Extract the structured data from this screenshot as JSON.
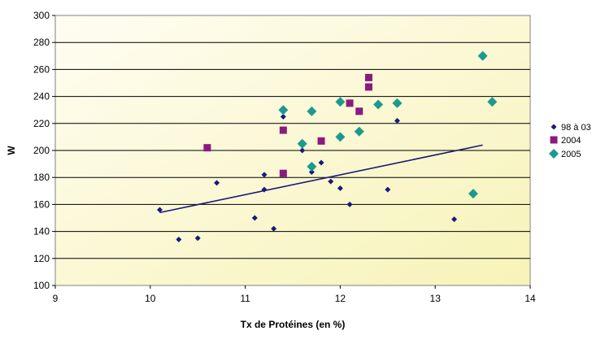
{
  "chart_data": {
    "type": "scatter",
    "xlabel": "Tx de Protéines (en %)",
    "ylabel": "W",
    "xlim": [
      9,
      14
    ],
    "ylim": [
      100,
      300
    ],
    "xticks": [
      9,
      10,
      11,
      12,
      13,
      14
    ],
    "yticks": [
      100,
      120,
      140,
      160,
      180,
      200,
      220,
      240,
      260,
      280,
      300
    ],
    "grid": "horizontal",
    "legend_position": "right",
    "background_gradient": [
      "#fffdf2",
      "#f7f3b8"
    ],
    "series": [
      {
        "name": "98 à 03",
        "color": "#1a1a7a",
        "marker": "diamond-small",
        "points": [
          [
            10.1,
            156
          ],
          [
            10.3,
            134
          ],
          [
            10.5,
            135
          ],
          [
            10.7,
            176
          ],
          [
            11.1,
            150
          ],
          [
            11.2,
            182
          ],
          [
            11.2,
            171
          ],
          [
            11.3,
            142
          ],
          [
            11.4,
            225
          ],
          [
            11.6,
            200
          ],
          [
            11.7,
            184
          ],
          [
            11.8,
            191
          ],
          [
            11.9,
            177
          ],
          [
            12.0,
            172
          ],
          [
            12.1,
            160
          ],
          [
            12.5,
            171
          ],
          [
            12.6,
            222
          ],
          [
            13.2,
            149
          ]
        ]
      },
      {
        "name": "2004",
        "color": "#8b1a7d",
        "marker": "square",
        "points": [
          [
            10.6,
            202
          ],
          [
            11.4,
            215
          ],
          [
            11.4,
            183
          ],
          [
            11.8,
            207
          ],
          [
            12.1,
            235
          ],
          [
            12.2,
            229
          ],
          [
            12.3,
            254
          ],
          [
            12.3,
            247
          ]
        ]
      },
      {
        "name": "2005",
        "color": "#1a9a90",
        "marker": "diamond",
        "points": [
          [
            11.4,
            230
          ],
          [
            11.6,
            205
          ],
          [
            11.7,
            229
          ],
          [
            11.7,
            188
          ],
          [
            12.0,
            236
          ],
          [
            12.0,
            210
          ],
          [
            12.2,
            214
          ],
          [
            12.4,
            234
          ],
          [
            12.6,
            235
          ],
          [
            13.4,
            168
          ],
          [
            13.5,
            270
          ],
          [
            13.6,
            236
          ]
        ]
      }
    ],
    "trendline": {
      "series": "98 à 03",
      "color": "#1a1a7a",
      "from": [
        10.1,
        154
      ],
      "to": [
        13.5,
        204
      ]
    }
  }
}
